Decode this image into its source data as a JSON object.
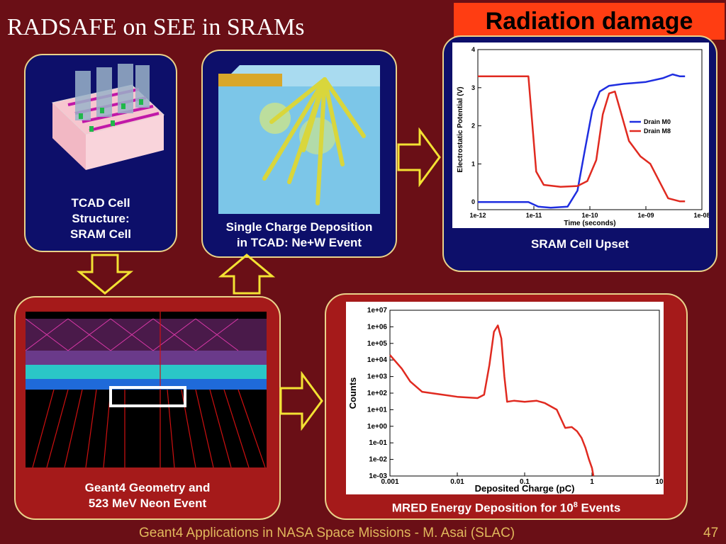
{
  "slide": {
    "title": "RADSAFE on SEE in SRAMs",
    "badge": "Radiation damage",
    "footer_left": "Geant4 Applications in NASA Space Missions - M. Asai (SLAC)",
    "page_number": "47"
  },
  "panels": {
    "tcad_caption": [
      "TCAD Cell",
      "Structure:",
      "SRAM Cell"
    ],
    "deposition_caption": [
      "Single Charge Deposition",
      "in TCAD: Ne+W Event"
    ],
    "upset_caption": "SRAM Cell Upset",
    "geant4_caption": [
      "Geant4 Geometry and",
      "523 MeV Neon Event"
    ],
    "mred_caption_main": "MRED Energy Deposition for 10",
    "mred_caption_sup": "8",
    "mred_caption_end": " Events"
  },
  "chart_data": [
    {
      "type": "line",
      "xlabel": "Time (seconds)",
      "ylabel": "Electrostatic Potential (V)",
      "x_scale": "log",
      "xlim": [
        1e-12,
        1e-08
      ],
      "ylim": [
        -0.2,
        4
      ],
      "x_ticks": [
        "1e-12",
        "1e-11",
        "1e-10",
        "1e-09",
        "1e-08"
      ],
      "y_ticks": [
        "0",
        "1",
        "2",
        "3",
        "4"
      ],
      "legend_position": "right",
      "series": [
        {
          "name": "Drain M0",
          "color": "#1f2ee0",
          "points": [
            [
              1e-12,
              0
            ],
            [
              8e-12,
              0
            ],
            [
              1.2e-11,
              -0.12
            ],
            [
              2e-11,
              -0.15
            ],
            [
              4e-11,
              -0.12
            ],
            [
              6e-11,
              0.3
            ],
            [
              8e-11,
              1.3
            ],
            [
              1.1e-10,
              2.4
            ],
            [
              1.5e-10,
              2.9
            ],
            [
              2.2e-10,
              3.05
            ],
            [
              4e-10,
              3.1
            ],
            [
              1e-09,
              3.15
            ],
            [
              2e-09,
              3.25
            ],
            [
              3e-09,
              3.35
            ],
            [
              4e-09,
              3.3
            ],
            [
              5e-09,
              3.3
            ]
          ]
        },
        {
          "name": "Drain M8",
          "color": "#e02a20",
          "points": [
            [
              1e-12,
              3.3
            ],
            [
              8e-12,
              3.3
            ],
            [
              1.1e-11,
              0.8
            ],
            [
              1.5e-11,
              0.45
            ],
            [
              3e-11,
              0.4
            ],
            [
              6e-11,
              0.42
            ],
            [
              9e-11,
              0.55
            ],
            [
              1.3e-10,
              1.1
            ],
            [
              1.7e-10,
              2.3
            ],
            [
              2.2e-10,
              2.85
            ],
            [
              2.8e-10,
              2.9
            ],
            [
              3.5e-10,
              2.4
            ],
            [
              5e-10,
              1.6
            ],
            [
              8e-10,
              1.2
            ],
            [
              1.2e-09,
              1.0
            ],
            [
              1.8e-09,
              0.5
            ],
            [
              2.5e-09,
              0.1
            ],
            [
              4e-09,
              0.02
            ],
            [
              5e-09,
              0.02
            ]
          ]
        }
      ]
    },
    {
      "type": "line",
      "xlabel": "Deposited Charge (pC)",
      "ylabel": "Counts",
      "x_scale": "log",
      "y_scale": "log",
      "xlim": [
        0.001,
        10
      ],
      "ylim": [
        0.001,
        10000000
      ],
      "x_ticks": [
        "0.001",
        "0.01",
        "0.1",
        "1",
        "10"
      ],
      "y_ticks": [
        "1e-03",
        "1e-02",
        "1e-01",
        "1e+00",
        "1e+01",
        "1e+02",
        "1e+03",
        "1e+04",
        "1e+05",
        "1e+06",
        "1e+07"
      ],
      "series": [
        {
          "color": "#e02a20",
          "points": [
            [
              0.001,
              20000
            ],
            [
              0.0015,
              3000
            ],
            [
              0.002,
              500
            ],
            [
              0.003,
              120
            ],
            [
              0.005,
              90
            ],
            [
              0.01,
              60
            ],
            [
              0.02,
              50
            ],
            [
              0.025,
              80
            ],
            [
              0.03,
              5000
            ],
            [
              0.035,
              500000
            ],
            [
              0.04,
              1200000
            ],
            [
              0.045,
              200000
            ],
            [
              0.05,
              1000
            ],
            [
              0.055,
              30
            ],
            [
              0.07,
              35
            ],
            [
              0.1,
              30
            ],
            [
              0.15,
              35
            ],
            [
              0.2,
              25
            ],
            [
              0.3,
              10
            ],
            [
              0.4,
              0.8
            ],
            [
              0.5,
              0.9
            ],
            [
              0.6,
              0.5
            ],
            [
              0.7,
              0.2
            ],
            [
              0.8,
              0.05
            ],
            [
              0.9,
              0.01
            ],
            [
              1.0,
              0.003
            ],
            [
              1.05,
              0.001
            ]
          ]
        }
      ]
    }
  ]
}
